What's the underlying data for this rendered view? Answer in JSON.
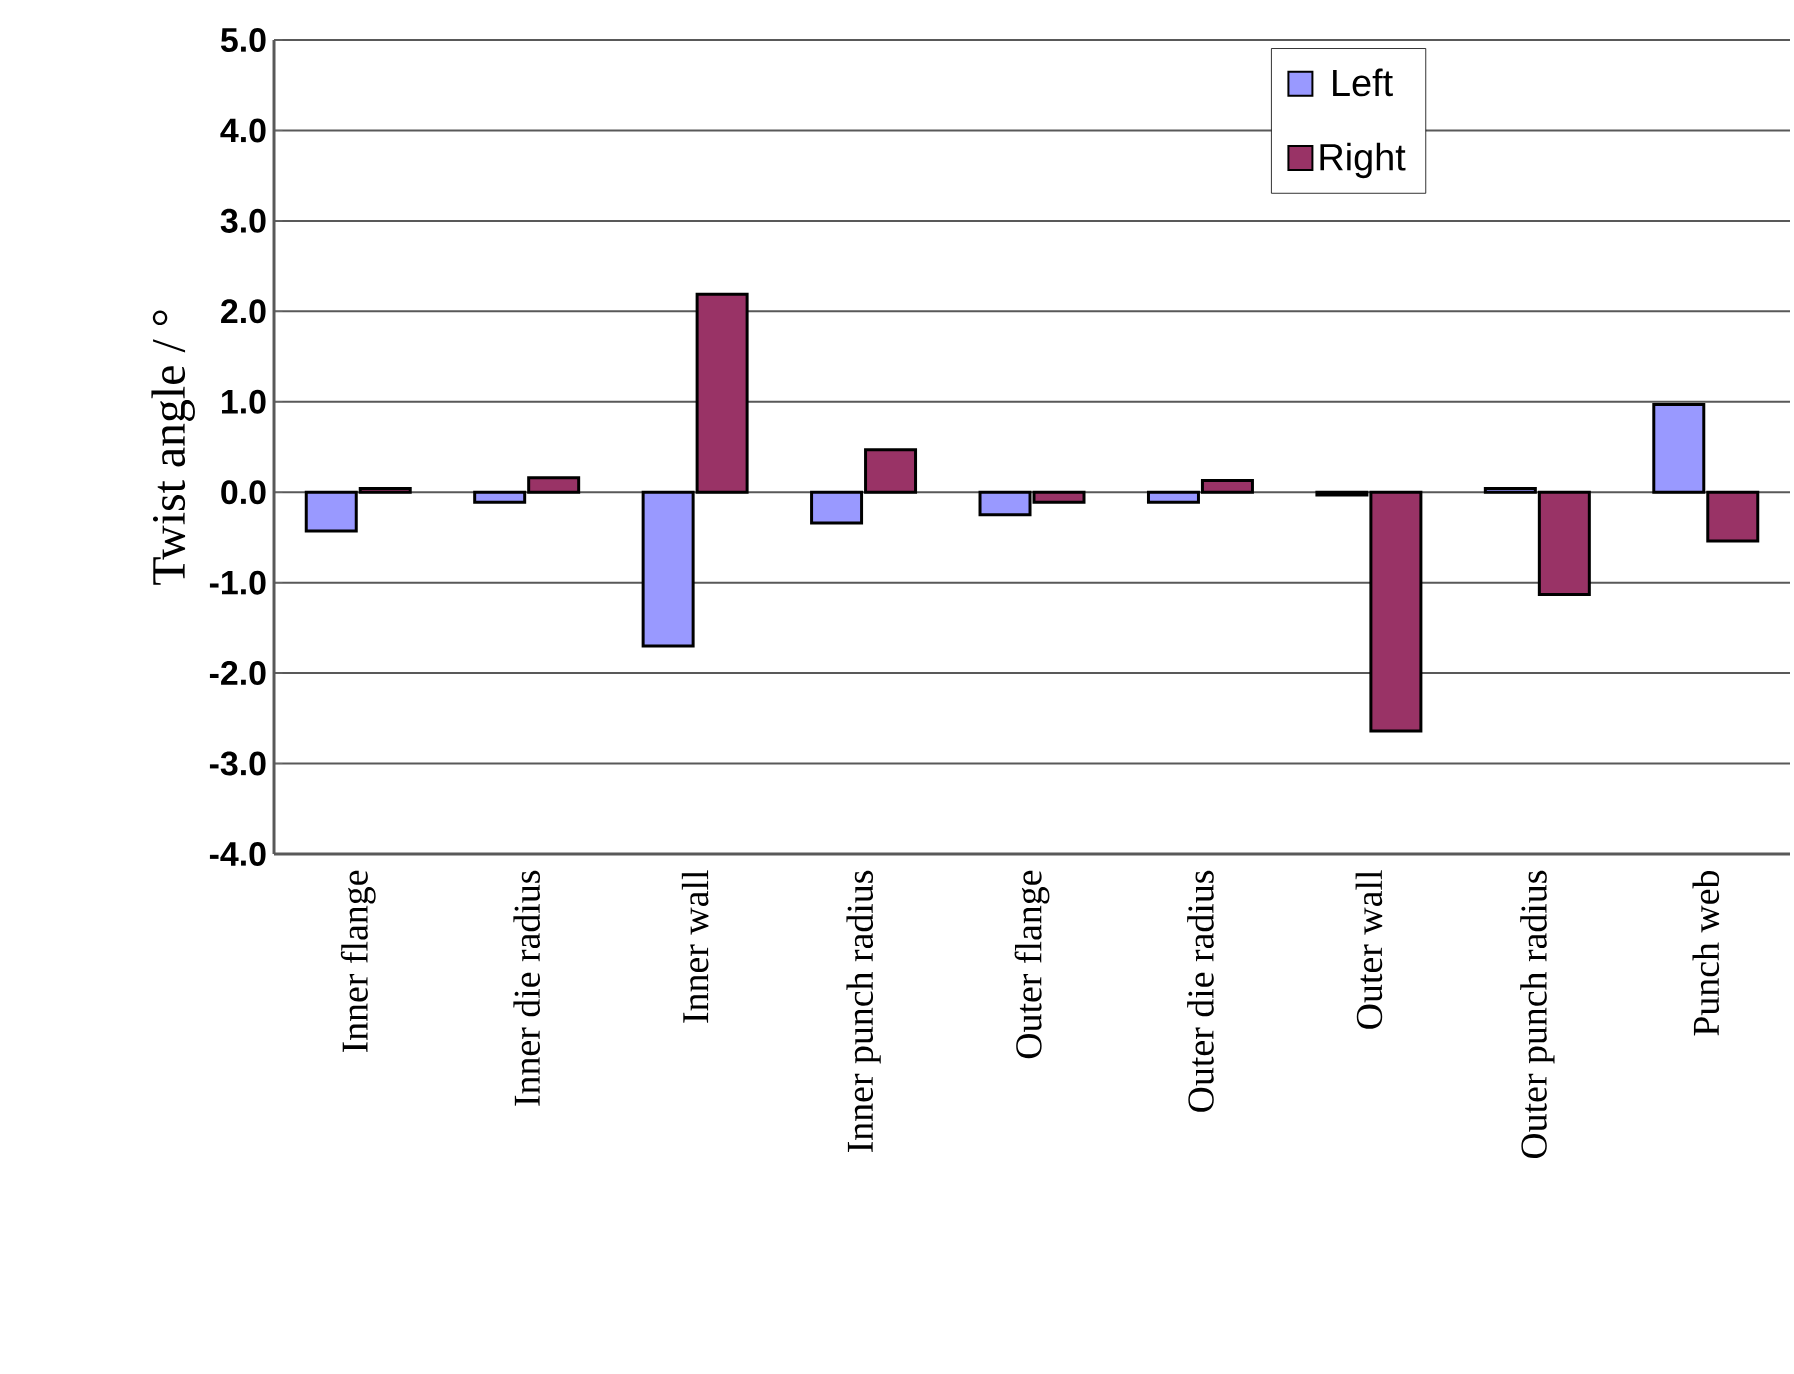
{
  "chart_data": {
    "type": "bar",
    "ylabel": "Twist angle / °",
    "categories": [
      "Inner flange",
      "Inner die radius",
      "Inner wall",
      "Inner punch radius",
      "Outer flange",
      "Outer die radius",
      "Outer wall",
      "Outer punch radius",
      "Punch web"
    ],
    "series": [
      {
        "name": "Left",
        "color": "#9999ff",
        "values": [
          -0.43,
          -0.11,
          -1.7,
          -0.34,
          -0.25,
          -0.11,
          -0.03,
          0.04,
          0.97
        ]
      },
      {
        "name": "Right",
        "color": "#993366",
        "values": [
          0.04,
          0.16,
          2.19,
          0.47,
          -0.11,
          0.13,
          -2.64,
          -1.13,
          -0.54
        ]
      }
    ],
    "ylim": [
      -4,
      5
    ],
    "yticks": [
      {
        "value": -4,
        "label": "-4.0"
      },
      {
        "value": -3,
        "label": "-3.0"
      },
      {
        "value": -2,
        "label": "-2.0"
      },
      {
        "value": -1,
        "label": "-1.0"
      },
      {
        "value": 0,
        "label": "0.0"
      },
      {
        "value": 1,
        "label": "1.0"
      },
      {
        "value": 2,
        "label": "2.0"
      },
      {
        "value": 3,
        "label": "3.0"
      },
      {
        "value": 4,
        "label": "4.0"
      },
      {
        "value": 5,
        "label": "5.0"
      }
    ],
    "grid": "y",
    "legend": "top right"
  }
}
